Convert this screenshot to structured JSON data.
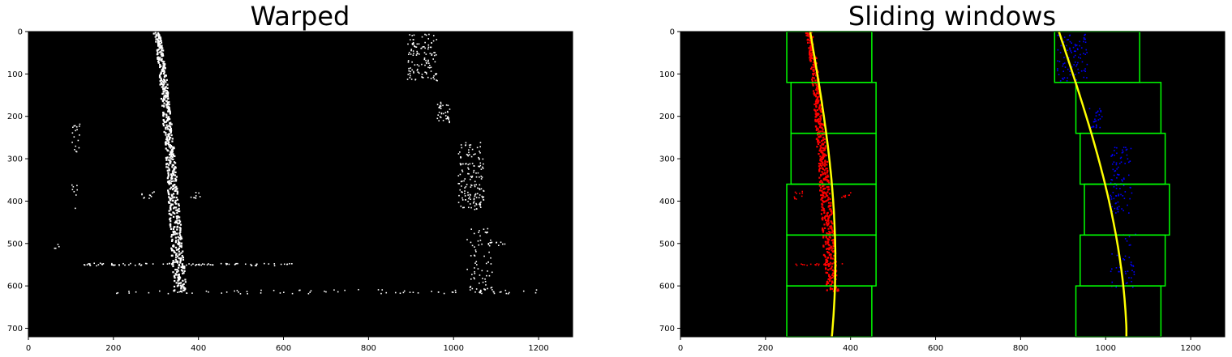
{
  "panels": [
    {
      "title": "Warped",
      "x_ticks": [
        "0",
        "200",
        "400",
        "600",
        "800",
        "1000",
        "1200"
      ],
      "y_ticks": [
        "0",
        "100",
        "200",
        "300",
        "400",
        "500",
        "600",
        "700"
      ],
      "image": {
        "kind": "binary-warped",
        "background": "#000000",
        "pixel_color": "#ffffff"
      }
    },
    {
      "title": "Sliding windows",
      "x_ticks": [
        "0",
        "200",
        "400",
        "600",
        "800",
        "1000",
        "1200"
      ],
      "y_ticks": [
        "0",
        "100",
        "200",
        "300",
        "400",
        "500",
        "600",
        "700"
      ],
      "image": {
        "kind": "sliding-windows",
        "background": "#000000",
        "left_lane_color": "#ff0000",
        "right_lane_color": "#0000ff",
        "window_color": "#00ff00",
        "fit_color": "#ffff00",
        "window_count": 6
      }
    }
  ],
  "axis": {
    "x_range": [
      0,
      1280
    ],
    "y_range": [
      720,
      0
    ],
    "tick_values_x": [
      0,
      200,
      400,
      600,
      800,
      1000,
      1200
    ],
    "tick_values_y": [
      0,
      100,
      200,
      300,
      400,
      500,
      600,
      700
    ]
  }
}
